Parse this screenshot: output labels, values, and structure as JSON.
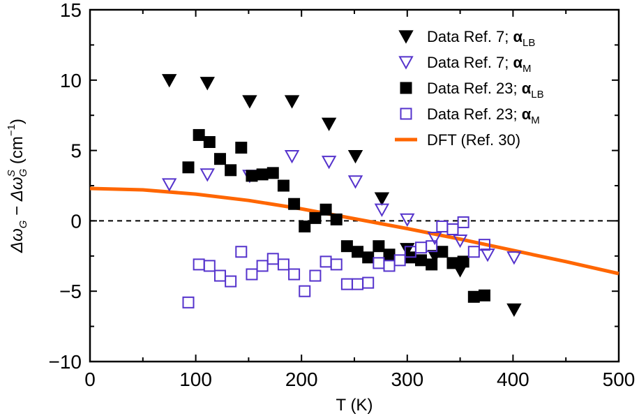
{
  "chart_data": {
    "type": "scatter",
    "xlabel": "T (K)",
    "ylabel": "Δω_G − Δω_G^S (cm^−1)",
    "ylabel_parts": {
      "main": "Δω",
      "sub1": "G",
      "minus": " − ",
      "main2": "Δω",
      "sup": "S",
      "sub2": "G",
      "unit_open": " (cm",
      "unit_sup": "−1",
      "unit_close": ")"
    },
    "xlim": [
      0,
      500
    ],
    "ylim": [
      -10,
      15
    ],
    "xticks": [
      0,
      100,
      200,
      300,
      400,
      500
    ],
    "yticks": [
      -10,
      -5,
      0,
      5,
      10,
      15
    ],
    "x_tick_labels": [
      "0",
      "100",
      "200",
      "300",
      "400",
      "500"
    ],
    "y_tick_labels": [
      "−10",
      "−5",
      "0",
      "5",
      "10",
      "15"
    ],
    "reference_line": {
      "y": 0,
      "style": "dashed"
    },
    "legend_position": "top-right",
    "series": [
      {
        "name": "Data Ref. 7;   αLB",
        "legend_main": "Data Ref. 7;   α",
        "legend_sub": "LB",
        "marker": "triangle-down-filled",
        "color": "#000000",
        "points": [
          [
            75,
            10
          ],
          [
            111,
            9.8
          ],
          [
            151,
            8.5
          ],
          [
            191,
            8.5
          ],
          [
            226,
            6.9
          ],
          [
            251,
            4.6
          ],
          [
            276,
            1.6
          ],
          [
            300,
            -2
          ],
          [
            326,
            -2.5
          ],
          [
            350,
            -3.5
          ],
          [
            401,
            -6.3
          ]
        ]
      },
      {
        "name": "Data Ref. 7;   αM",
        "legend_main": "Data Ref. 7;   α",
        "legend_sub": "M",
        "marker": "triangle-down-open",
        "color": "#5533cc",
        "points": [
          [
            75,
            2.6
          ],
          [
            111,
            3.3
          ],
          [
            151,
            3.2
          ],
          [
            191,
            4.6
          ],
          [
            226,
            4.2
          ],
          [
            251,
            2.8
          ],
          [
            276,
            0.8
          ],
          [
            300,
            0.1
          ],
          [
            326,
            -1.2
          ],
          [
            350,
            -1.4
          ],
          [
            376,
            -2.4
          ],
          [
            401,
            -2.6
          ]
        ]
      },
      {
        "name": "Data Ref. 23; αLB",
        "legend_main": "Data Ref. 23; α",
        "legend_sub": "LB",
        "marker": "square-filled",
        "color": "#000000",
        "points": [
          [
            93,
            3.8
          ],
          [
            103,
            6.1
          ],
          [
            113,
            5.6
          ],
          [
            123,
            4.4
          ],
          [
            133,
            3.6
          ],
          [
            143,
            5.2
          ],
          [
            153,
            3.2
          ],
          [
            163,
            3.3
          ],
          [
            173,
            3.4
          ],
          [
            183,
            2.5
          ],
          [
            193,
            1.2
          ],
          [
            203,
            -0.4
          ],
          [
            213,
            0.2
          ],
          [
            223,
            0.8
          ],
          [
            233,
            0.1
          ],
          [
            243,
            -1.8
          ],
          [
            253,
            -2.2
          ],
          [
            263,
            -2.6
          ],
          [
            273,
            -1.8
          ],
          [
            283,
            -2.4
          ],
          [
            303,
            -2.6
          ],
          [
            313,
            -2.8
          ],
          [
            323,
            -3.1
          ],
          [
            333,
            -2.2
          ],
          [
            343,
            -3
          ],
          [
            353,
            -2.9
          ],
          [
            363,
            -5.4
          ],
          [
            373,
            -5.3
          ]
        ]
      },
      {
        "name": "Data Ref. 23; αM",
        "legend_main": "Data Ref. 23; α",
        "legend_sub": "M",
        "marker": "square-open",
        "color": "#5533cc",
        "points": [
          [
            93,
            -5.8
          ],
          [
            103,
            -3.1
          ],
          [
            113,
            -3.2
          ],
          [
            123,
            -3.9
          ],
          [
            133,
            -4.3
          ],
          [
            143,
            -2.2
          ],
          [
            153,
            -3.8
          ],
          [
            163,
            -3.2
          ],
          [
            173,
            -2.7
          ],
          [
            183,
            -3.1
          ],
          [
            193,
            -3.8
          ],
          [
            203,
            -5
          ],
          [
            213,
            -3.9
          ],
          [
            223,
            -2.9
          ],
          [
            233,
            -3.1
          ],
          [
            243,
            -4.5
          ],
          [
            253,
            -4.5
          ],
          [
            263,
            -4.4
          ],
          [
            273,
            -3
          ],
          [
            283,
            -3.2
          ],
          [
            293,
            -2.8
          ],
          [
            303,
            -2.2
          ],
          [
            313,
            -1.9
          ],
          [
            323,
            -1.8
          ],
          [
            333,
            -0.4
          ],
          [
            343,
            -0.6
          ],
          [
            353,
            -0.1
          ],
          [
            363,
            -2.2
          ],
          [
            373,
            -1.7
          ]
        ]
      },
      {
        "name": "DFT (Ref. 30)",
        "legend_main": "DFT (Ref. 30)",
        "legend_sub": "",
        "marker": "line",
        "color": "#ff6600",
        "points": [
          [
            0,
            2.3
          ],
          [
            50,
            2.2
          ],
          [
            100,
            1.9
          ],
          [
            150,
            1.45
          ],
          [
            200,
            0.85
          ],
          [
            250,
            0.15
          ],
          [
            300,
            -0.55
          ],
          [
            350,
            -1.3
          ],
          [
            400,
            -2.1
          ],
          [
            450,
            -2.9
          ],
          [
            500,
            -3.75
          ]
        ]
      }
    ]
  }
}
